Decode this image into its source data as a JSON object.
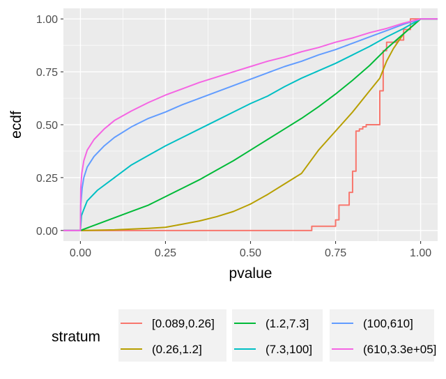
{
  "chart_data": {
    "type": "line",
    "xlabel": "pvalue",
    "ylabel": "ecdf",
    "xlim": [
      -0.05,
      1.05
    ],
    "ylim": [
      -0.05,
      1.05
    ],
    "x_ticks": [
      0.0,
      0.25,
      0.5,
      0.75,
      1.0
    ],
    "x_tick_labels": [
      "0.00",
      "0.25",
      "0.50",
      "0.75",
      "1.00"
    ],
    "y_ticks": [
      0.0,
      0.25,
      0.5,
      0.75,
      1.0
    ],
    "y_tick_labels": [
      "0.00",
      "0.25",
      "0.50",
      "0.75",
      "1.00"
    ],
    "grid": true,
    "legend_position": "bottom",
    "legend_title": "stratum",
    "series": [
      {
        "name": "[0.089,0.26]",
        "color": "#F8766D",
        "step": true,
        "points": [
          [
            -0.05,
            0
          ],
          [
            0.68,
            0
          ],
          [
            0.68,
            0.02
          ],
          [
            0.74,
            0.02
          ],
          [
            0.75,
            0.05
          ],
          [
            0.76,
            0.1
          ],
          [
            0.76,
            0.12
          ],
          [
            0.79,
            0.12
          ],
          [
            0.79,
            0.18
          ],
          [
            0.8,
            0.2
          ],
          [
            0.8,
            0.28
          ],
          [
            0.81,
            0.32
          ],
          [
            0.81,
            0.4
          ],
          [
            0.81,
            0.47
          ],
          [
            0.82,
            0.48
          ],
          [
            0.83,
            0.49
          ],
          [
            0.84,
            0.5
          ],
          [
            0.88,
            0.5
          ],
          [
            0.88,
            0.66
          ],
          [
            0.89,
            0.78
          ],
          [
            0.89,
            0.85
          ],
          [
            0.9,
            0.89
          ],
          [
            0.91,
            0.89
          ],
          [
            0.93,
            0.9
          ],
          [
            0.95,
            0.95
          ],
          [
            0.97,
            0.97
          ],
          [
            0.97,
            1
          ],
          [
            1.05,
            1
          ]
        ]
      },
      {
        "name": "(0.26,1.2]",
        "color": "#B79F00",
        "points": [
          [
            -0.05,
            0
          ],
          [
            0,
            0
          ],
          [
            0.1,
            0.003
          ],
          [
            0.2,
            0.01
          ],
          [
            0.25,
            0.015
          ],
          [
            0.3,
            0.03
          ],
          [
            0.35,
            0.045
          ],
          [
            0.4,
            0.065
          ],
          [
            0.45,
            0.09
          ],
          [
            0.5,
            0.125
          ],
          [
            0.55,
            0.17
          ],
          [
            0.6,
            0.22
          ],
          [
            0.65,
            0.27
          ],
          [
            0.7,
            0.38
          ],
          [
            0.75,
            0.47
          ],
          [
            0.8,
            0.56
          ],
          [
            0.85,
            0.66
          ],
          [
            0.88,
            0.72
          ],
          [
            0.9,
            0.8
          ],
          [
            0.92,
            0.86
          ],
          [
            0.95,
            0.93
          ],
          [
            1,
            1
          ],
          [
            1.05,
            1
          ]
        ]
      },
      {
        "name": "(1.2,7.3]",
        "color": "#00BA38",
        "points": [
          [
            -0.05,
            0
          ],
          [
            0,
            0
          ],
          [
            0.05,
            0.03
          ],
          [
            0.1,
            0.06
          ],
          [
            0.15,
            0.09
          ],
          [
            0.2,
            0.12
          ],
          [
            0.25,
            0.16
          ],
          [
            0.3,
            0.2
          ],
          [
            0.35,
            0.24
          ],
          [
            0.4,
            0.285
          ],
          [
            0.45,
            0.33
          ],
          [
            0.5,
            0.38
          ],
          [
            0.55,
            0.43
          ],
          [
            0.6,
            0.48
          ],
          [
            0.65,
            0.53
          ],
          [
            0.7,
            0.585
          ],
          [
            0.75,
            0.645
          ],
          [
            0.8,
            0.71
          ],
          [
            0.85,
            0.78
          ],
          [
            0.9,
            0.86
          ],
          [
            0.95,
            0.93
          ],
          [
            1,
            1
          ],
          [
            1.05,
            1
          ]
        ]
      },
      {
        "name": "(7.3,100]",
        "color": "#00BFC4",
        "points": [
          [
            -0.05,
            0
          ],
          [
            0,
            0
          ],
          [
            0.003,
            0.07
          ],
          [
            0.01,
            0.1
          ],
          [
            0.02,
            0.14
          ],
          [
            0.05,
            0.19
          ],
          [
            0.1,
            0.25
          ],
          [
            0.15,
            0.31
          ],
          [
            0.2,
            0.355
          ],
          [
            0.25,
            0.4
          ],
          [
            0.3,
            0.44
          ],
          [
            0.35,
            0.48
          ],
          [
            0.4,
            0.52
          ],
          [
            0.45,
            0.56
          ],
          [
            0.5,
            0.6
          ],
          [
            0.55,
            0.635
          ],
          [
            0.6,
            0.68
          ],
          [
            0.65,
            0.72
          ],
          [
            0.7,
            0.755
          ],
          [
            0.75,
            0.79
          ],
          [
            0.8,
            0.83
          ],
          [
            0.85,
            0.87
          ],
          [
            0.9,
            0.915
          ],
          [
            0.95,
            0.955
          ],
          [
            1,
            1
          ],
          [
            1.05,
            1
          ]
        ]
      },
      {
        "name": "(100,610]",
        "color": "#619CFF",
        "points": [
          [
            -0.05,
            0
          ],
          [
            0,
            0
          ],
          [
            0.001,
            0.12
          ],
          [
            0.005,
            0.2
          ],
          [
            0.01,
            0.25
          ],
          [
            0.02,
            0.3
          ],
          [
            0.04,
            0.35
          ],
          [
            0.07,
            0.4
          ],
          [
            0.1,
            0.44
          ],
          [
            0.15,
            0.49
          ],
          [
            0.2,
            0.53
          ],
          [
            0.25,
            0.56
          ],
          [
            0.3,
            0.595
          ],
          [
            0.35,
            0.625
          ],
          [
            0.4,
            0.655
          ],
          [
            0.45,
            0.685
          ],
          [
            0.5,
            0.715
          ],
          [
            0.55,
            0.745
          ],
          [
            0.6,
            0.775
          ],
          [
            0.65,
            0.8
          ],
          [
            0.7,
            0.83
          ],
          [
            0.75,
            0.855
          ],
          [
            0.8,
            0.885
          ],
          [
            0.85,
            0.915
          ],
          [
            0.9,
            0.945
          ],
          [
            0.95,
            0.975
          ],
          [
            1,
            1
          ],
          [
            1.05,
            1
          ]
        ]
      },
      {
        "name": "(610,3.3e+05]",
        "color": "#F564E3",
        "points": [
          [
            -0.05,
            0
          ],
          [
            0,
            0
          ],
          [
            0.001,
            0.2
          ],
          [
            0.004,
            0.27
          ],
          [
            0.01,
            0.33
          ],
          [
            0.02,
            0.38
          ],
          [
            0.04,
            0.43
          ],
          [
            0.07,
            0.48
          ],
          [
            0.1,
            0.52
          ],
          [
            0.15,
            0.565
          ],
          [
            0.2,
            0.605
          ],
          [
            0.25,
            0.64
          ],
          [
            0.3,
            0.67
          ],
          [
            0.35,
            0.7
          ],
          [
            0.4,
            0.725
          ],
          [
            0.45,
            0.75
          ],
          [
            0.5,
            0.775
          ],
          [
            0.55,
            0.8
          ],
          [
            0.6,
            0.82
          ],
          [
            0.65,
            0.845
          ],
          [
            0.7,
            0.865
          ],
          [
            0.75,
            0.89
          ],
          [
            0.8,
            0.91
          ],
          [
            0.85,
            0.935
          ],
          [
            0.9,
            0.955
          ],
          [
            0.95,
            0.98
          ],
          [
            1,
            1
          ],
          [
            1.05,
            1
          ]
        ]
      }
    ]
  }
}
